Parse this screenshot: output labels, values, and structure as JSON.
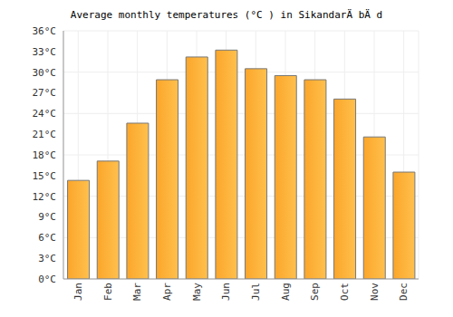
{
  "chart_data": {
    "type": "bar",
    "title": "Average monthly temperatures (°C ) in SikandarÄ bÄ d",
    "categories": [
      "Jan",
      "Feb",
      "Mar",
      "Apr",
      "May",
      "Jun",
      "Jul",
      "Aug",
      "Sep",
      "Oct",
      "Nov",
      "Dec"
    ],
    "values": [
      14.3,
      17.1,
      22.6,
      28.9,
      32.2,
      33.2,
      30.5,
      29.5,
      28.9,
      26.1,
      20.6,
      15.5
    ],
    "color": "#fba62a",
    "ylim": [
      0,
      36
    ],
    "yticks": [
      {
        "value": 0,
        "label": "0°C"
      },
      {
        "value": 3,
        "label": "3°C"
      },
      {
        "value": 6,
        "label": "6°C"
      },
      {
        "value": 9,
        "label": "9°C"
      },
      {
        "value": 12,
        "label": "12°C"
      },
      {
        "value": 15,
        "label": "15°C"
      },
      {
        "value": 18,
        "label": "18°C"
      },
      {
        "value": 21,
        "label": "21°C"
      },
      {
        "value": 24,
        "label": "24°C"
      },
      {
        "value": 27,
        "label": "27°C"
      },
      {
        "value": 30,
        "label": "30°C"
      },
      {
        "value": 33,
        "label": "33°C"
      },
      {
        "value": 36,
        "label": "36°C"
      }
    ],
    "grid": true
  }
}
